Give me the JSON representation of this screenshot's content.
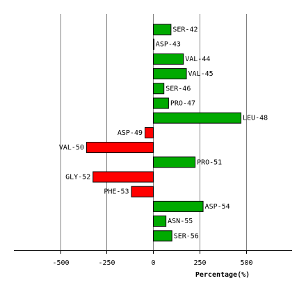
{
  "chart_data": {
    "type": "bar",
    "orientation": "horizontal",
    "title": "",
    "xlabel": "Percentage(%)",
    "ylabel": "",
    "xlim": [
      -750,
      750
    ],
    "xticks": [
      -500,
      -250,
      0,
      250,
      500
    ],
    "xtick_labels": [
      "-500",
      "-250",
      "0",
      "250",
      "500"
    ],
    "grid": "vertical",
    "categories": [
      "SER-42",
      "ASP-43",
      "VAL-44",
      "VAL-45",
      "SER-46",
      "PRO-47",
      "LEU-48",
      "ASP-49",
      "VAL-50",
      "PRO-51",
      "GLY-52",
      "PHE-53",
      "ASP-54",
      "ASN-55",
      "SER-56"
    ],
    "values": [
      95,
      3,
      162,
      178,
      57,
      82,
      472,
      -45,
      -360,
      225,
      -325,
      -118,
      268,
      68,
      100
    ],
    "colors": {
      "positive": "#00aa00",
      "negative": "#ff0000",
      "grid": "#808080",
      "axis": "#000000",
      "outline": "#000000"
    }
  }
}
